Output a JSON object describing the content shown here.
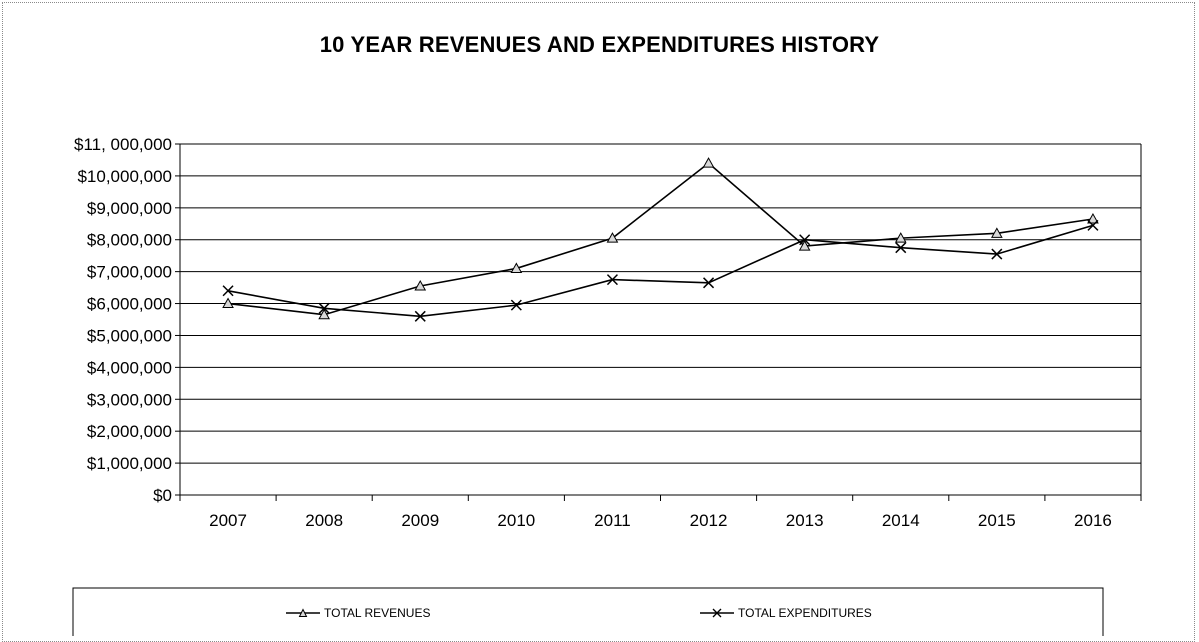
{
  "chart_data": {
    "type": "line",
    "title": "10 YEAR REVENUES AND EXPENDITURES HISTORY",
    "xlabel": "",
    "ylabel": "",
    "x": [
      "2007",
      "2008",
      "2009",
      "2010",
      "2011",
      "2012",
      "2013",
      "2014",
      "2015",
      "2016"
    ],
    "ylim": [
      0,
      11000000
    ],
    "yticks": [
      0,
      1000000,
      2000000,
      3000000,
      4000000,
      5000000,
      6000000,
      7000000,
      8000000,
      9000000,
      10000000,
      11000000
    ],
    "ytick_labels": [
      "$0",
      "$1,000,000",
      "$2,000,000",
      "$3,000,000",
      "$4,000,000",
      "$5,000,000",
      "$6,000,000",
      "$7,000,000",
      "$8,000,000",
      "$9,000,000",
      "$10,000,000",
      "$11, 000,000"
    ],
    "grid": true,
    "legend_position": "bottom",
    "series": [
      {
        "name": "TOTAL REVENUES",
        "marker": "triangle",
        "color": "#000000",
        "values": [
          6000000,
          5650000,
          6550000,
          7100000,
          8050000,
          10400000,
          7800000,
          8050000,
          8200000,
          8650000
        ]
      },
      {
        "name": "TOTAL EXPENDITURES",
        "marker": "x",
        "color": "#000000",
        "values": [
          6400000,
          5850000,
          5600000,
          5950000,
          6750000,
          6650000,
          8000000,
          7750000,
          7550000,
          8450000
        ]
      }
    ]
  }
}
